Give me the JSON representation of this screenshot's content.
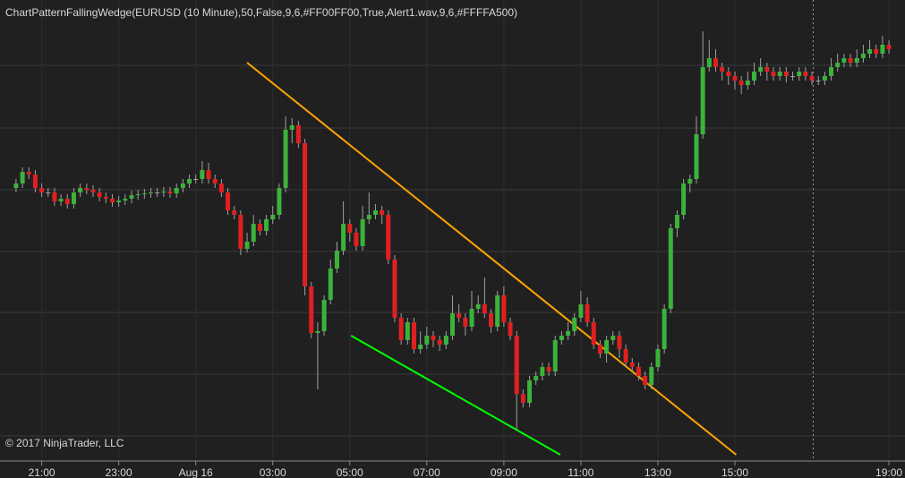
{
  "chart_data": {
    "type": "candlestick",
    "title": "ChartPatternFallingWedge(EURUSD (10 Minute),50,False,9,6,#FF00FF00,True,Alert1.wav,9,6,#FFFFA500)",
    "copyright": "© 2017 NinjaTrader, LLC",
    "up_color": "#3bb33b",
    "down_color": "#e02020",
    "wick_color": "#a0a0a0",
    "ylim": [
      85,
      600
    ],
    "xlim": [
      -2.5,
      138.5
    ],
    "ygrid": [
      527,
      457,
      388,
      319,
      251,
      182,
      113
    ],
    "session_break": 124.2,
    "xticks": [
      {
        "value": 4,
        "label": "21:00"
      },
      {
        "value": 16,
        "label": "23:00"
      },
      {
        "value": 28,
        "label": "Aug 16"
      },
      {
        "value": 40,
        "label": "03:00"
      },
      {
        "value": 52,
        "label": "05:00"
      },
      {
        "value": 64,
        "label": "07:00"
      },
      {
        "value": 76,
        "label": "09:00"
      },
      {
        "value": 88,
        "label": "11:00"
      },
      {
        "value": 100,
        "label": "13:00"
      },
      {
        "value": 112,
        "label": "15:00"
      },
      {
        "value": 136,
        "label": "19:00"
      }
    ],
    "trend_lines": [
      {
        "x": [
          36,
          112.2
        ],
        "y": [
          530,
          92
        ],
        "color": "#ffa500"
      },
      {
        "x": [
          52.2,
          84.8
        ],
        "y": [
          225,
          92
        ],
        "color": "#00ff00"
      }
    ],
    "ohlc": [
      [
        390,
        400,
        385,
        395
      ],
      [
        395,
        413,
        390,
        408
      ],
      [
        408,
        413,
        400,
        405
      ],
      [
        405,
        410,
        385,
        390
      ],
      [
        390,
        395,
        380,
        385
      ],
      [
        385,
        390,
        380,
        385
      ],
      [
        385,
        390,
        370,
        375
      ],
      [
        375,
        383,
        370,
        378
      ],
      [
        378,
        383,
        367,
        372
      ],
      [
        372,
        390,
        367,
        385
      ],
      [
        385,
        395,
        380,
        390
      ],
      [
        390,
        395,
        383,
        388
      ],
      [
        388,
        393,
        380,
        385
      ],
      [
        385,
        390,
        375,
        380
      ],
      [
        380,
        385,
        373,
        378
      ],
      [
        378,
        383,
        369,
        374
      ],
      [
        374,
        381,
        369,
        376
      ],
      [
        376,
        383,
        371,
        378
      ],
      [
        378,
        387,
        373,
        382
      ],
      [
        382,
        388,
        377,
        383
      ],
      [
        383,
        389,
        378,
        384
      ],
      [
        384,
        390,
        379,
        385
      ],
      [
        385,
        390,
        380,
        385
      ],
      [
        385,
        391,
        380,
        386
      ],
      [
        386,
        391,
        379,
        384
      ],
      [
        384,
        395,
        379,
        390
      ],
      [
        390,
        400,
        385,
        395
      ],
      [
        395,
        405,
        390,
        400
      ],
      [
        400,
        405,
        395,
        400
      ],
      [
        400,
        420,
        395,
        410
      ],
      [
        410,
        418,
        395,
        400
      ],
      [
        400,
        405,
        390,
        395
      ],
      [
        395,
        400,
        380,
        385
      ],
      [
        385,
        390,
        360,
        365
      ],
      [
        365,
        370,
        355,
        360
      ],
      [
        360,
        365,
        315,
        322
      ],
      [
        322,
        340,
        318,
        330
      ],
      [
        330,
        360,
        325,
        350
      ],
      [
        350,
        355,
        337,
        342
      ],
      [
        342,
        360,
        337,
        355
      ],
      [
        355,
        370,
        350,
        360
      ],
      [
        360,
        395,
        355,
        390
      ],
      [
        390,
        470,
        385,
        455
      ],
      [
        455,
        468,
        440,
        460
      ],
      [
        460,
        465,
        435,
        440
      ],
      [
        440,
        445,
        270,
        280
      ],
      [
        280,
        285,
        222,
        228
      ],
      [
        228,
        240,
        165,
        230
      ],
      [
        230,
        270,
        225,
        265
      ],
      [
        265,
        310,
        260,
        300
      ],
      [
        300,
        330,
        295,
        320
      ],
      [
        320,
        375,
        315,
        350
      ],
      [
        350,
        355,
        330,
        340
      ],
      [
        340,
        345,
        320,
        325
      ],
      [
        325,
        370,
        320,
        355
      ],
      [
        355,
        385,
        350,
        360
      ],
      [
        360,
        372,
        355,
        365
      ],
      [
        365,
        370,
        350,
        360
      ],
      [
        360,
        365,
        305,
        310
      ],
      [
        310,
        315,
        240,
        245
      ],
      [
        245,
        250,
        215,
        220
      ],
      [
        220,
        245,
        215,
        240
      ],
      [
        240,
        245,
        205,
        210
      ],
      [
        210,
        230,
        205,
        215
      ],
      [
        215,
        235,
        210,
        225
      ],
      [
        225,
        230,
        212,
        220
      ],
      [
        220,
        225,
        208,
        215
      ],
      [
        215,
        230,
        210,
        225
      ],
      [
        225,
        270,
        220,
        250
      ],
      [
        250,
        260,
        240,
        245
      ],
      [
        245,
        250,
        225,
        235
      ],
      [
        235,
        275,
        230,
        255
      ],
      [
        255,
        270,
        250,
        260
      ],
      [
        260,
        290,
        245,
        250
      ],
      [
        250,
        255,
        228,
        235
      ],
      [
        235,
        275,
        230,
        270
      ],
      [
        270,
        280,
        235,
        240
      ],
      [
        240,
        245,
        220,
        225
      ],
      [
        225,
        230,
        120,
        160
      ],
      [
        160,
        165,
        145,
        150
      ],
      [
        150,
        180,
        145,
        175
      ],
      [
        175,
        185,
        170,
        180
      ],
      [
        180,
        195,
        175,
        190
      ],
      [
        190,
        195,
        180,
        185
      ],
      [
        185,
        225,
        180,
        220
      ],
      [
        220,
        230,
        215,
        225
      ],
      [
        225,
        240,
        220,
        230
      ],
      [
        230,
        250,
        225,
        245
      ],
      [
        245,
        275,
        240,
        260
      ],
      [
        260,
        268,
        235,
        240
      ],
      [
        240,
        245,
        210,
        215
      ],
      [
        215,
        220,
        200,
        205
      ],
      [
        205,
        225,
        195,
        220
      ],
      [
        220,
        230,
        215,
        225
      ],
      [
        225,
        230,
        200,
        210
      ],
      [
        210,
        215,
        190,
        195
      ],
      [
        195,
        200,
        185,
        190
      ],
      [
        190,
        195,
        175,
        180
      ],
      [
        180,
        185,
        165,
        170
      ],
      [
        170,
        195,
        165,
        190
      ],
      [
        190,
        215,
        185,
        210
      ],
      [
        210,
        260,
        205,
        255
      ],
      [
        255,
        350,
        250,
        345
      ],
      [
        345,
        365,
        335,
        360
      ],
      [
        360,
        400,
        355,
        395
      ],
      [
        395,
        405,
        385,
        400
      ],
      [
        400,
        470,
        395,
        450
      ],
      [
        450,
        565,
        445,
        525
      ],
      [
        525,
        555,
        520,
        535
      ],
      [
        535,
        545,
        520,
        525
      ],
      [
        525,
        530,
        510,
        520
      ],
      [
        520,
        525,
        505,
        515
      ],
      [
        515,
        520,
        500,
        510
      ],
      [
        510,
        515,
        495,
        505
      ],
      [
        505,
        520,
        500,
        510
      ],
      [
        510,
        530,
        505,
        520
      ],
      [
        520,
        535,
        515,
        525
      ],
      [
        525,
        530,
        510,
        520
      ],
      [
        520,
        525,
        510,
        515
      ],
      [
        515,
        525,
        510,
        520
      ],
      [
        520,
        525,
        508,
        515
      ],
      [
        515,
        520,
        510,
        515
      ],
      [
        515,
        525,
        510,
        520
      ],
      [
        520,
        525,
        510,
        515
      ],
      [
        515,
        520,
        505,
        510
      ],
      [
        510,
        515,
        505,
        510
      ],
      [
        510,
        520,
        505,
        515
      ],
      [
        515,
        535,
        510,
        525
      ],
      [
        525,
        540,
        520,
        530
      ],
      [
        530,
        540,
        525,
        535
      ],
      [
        535,
        540,
        525,
        530
      ],
      [
        530,
        545,
        525,
        535
      ],
      [
        535,
        550,
        530,
        540
      ],
      [
        540,
        555,
        535,
        545
      ],
      [
        545,
        550,
        535,
        540
      ],
      [
        540,
        560,
        535,
        550
      ],
      [
        550,
        555,
        540,
        545
      ]
    ]
  }
}
